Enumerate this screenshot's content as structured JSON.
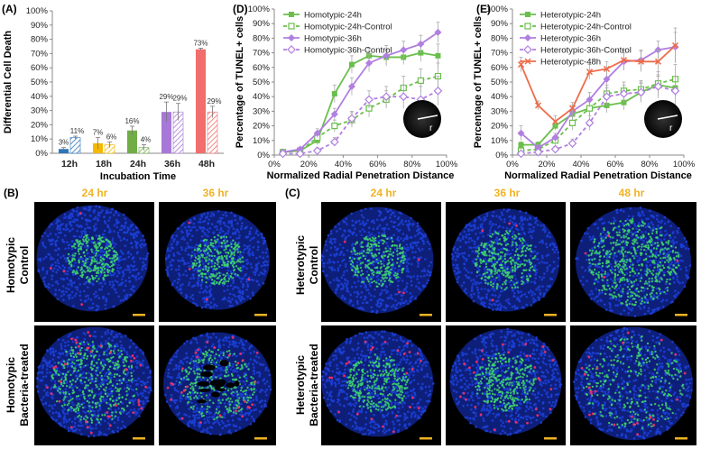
{
  "chart_data": [
    {
      "panel": "(A)",
      "type": "bar",
      "ylabel": "Differential Cell Death",
      "xlabel": "Incubation Time",
      "ylim": [
        0,
        100
      ],
      "yticks": [
        "0%",
        "10%",
        "20%",
        "30%",
        "40%",
        "50%",
        "60%",
        "70%",
        "80%",
        "90%",
        "100%"
      ],
      "categories": [
        "12h",
        "18h",
        "24h",
        "36h",
        "48h"
      ],
      "series": [
        {
          "values": [
            3,
            7,
            16,
            29,
            73
          ],
          "labels": [
            "3%",
            "7%",
            "16%",
            "29%",
            "73%"
          ]
        },
        {
          "values": [
            11,
            6,
            4,
            29,
            29
          ],
          "labels": [
            "11%",
            "6%",
            "4%",
            "29%",
            "29%"
          ]
        }
      ],
      "colors": [
        "#2e75b6",
        "#f5b800",
        "#70ad47",
        "#a678d8",
        "#f26d6d"
      ]
    },
    {
      "panel": "(D)",
      "type": "line",
      "ylabel": "Percentage of TUNEL+ cells",
      "xlabel": "Normalized Radial Penetration Distance",
      "xlim": [
        0,
        100
      ],
      "ylim": [
        0,
        100
      ],
      "xticks": [
        "0%",
        "20%",
        "40%",
        "60%",
        "80%",
        "100%"
      ],
      "yticks": [
        "0%",
        "10%",
        "20%",
        "30%",
        "40%",
        "50%",
        "60%",
        "70%",
        "80%",
        "90%",
        "100%"
      ],
      "x": [
        5,
        15,
        25,
        35,
        45,
        55,
        65,
        75,
        85,
        95
      ],
      "series": [
        {
          "name": "Homotypic-24h",
          "color": "#6abf4b",
          "marker": "square",
          "dashed": false,
          "values": [
            2,
            3,
            10,
            42,
            62,
            68,
            67,
            67,
            70,
            68
          ]
        },
        {
          "name": "Homotypic-24h-Control",
          "color": "#6abf4b",
          "marker": "square-open",
          "dashed": true,
          "values": [
            2,
            3,
            12,
            20,
            24,
            32,
            38,
            46,
            51,
            54
          ]
        },
        {
          "name": "Homotypic-36h",
          "color": "#b07fe0",
          "marker": "diamond",
          "dashed": false,
          "values": [
            2,
            4,
            15,
            28,
            47,
            63,
            68,
            72,
            76,
            84
          ]
        },
        {
          "name": "Homotypic-36h-Control",
          "color": "#b07fe0",
          "marker": "diamond-open",
          "dashed": true,
          "values": [
            1,
            1,
            3,
            9,
            25,
            38,
            40,
            40,
            38,
            44
          ]
        }
      ]
    },
    {
      "panel": "(E)",
      "type": "line",
      "ylabel": "Percentage of TUNEL+ cells",
      "xlabel": "Normalized Radial Penetration Distance",
      "xlim": [
        0,
        100
      ],
      "ylim": [
        0,
        100
      ],
      "xticks": [
        "0%",
        "20%",
        "40%",
        "60%",
        "80%",
        "100%"
      ],
      "yticks": [
        "0%",
        "10%",
        "20%",
        "30%",
        "40%",
        "50%",
        "60%",
        "70%",
        "80%",
        "90%",
        "100%"
      ],
      "x": [
        5,
        15,
        25,
        35,
        45,
        55,
        65,
        75,
        85,
        95
      ],
      "series": [
        {
          "name": "Heterotypic-24h",
          "color": "#6abf4b",
          "marker": "square",
          "dashed": false,
          "values": [
            7,
            7,
            20,
            28,
            32,
            34,
            36,
            43,
            48,
            46
          ]
        },
        {
          "name": "Heterotypic-24h-Control",
          "color": "#6abf4b",
          "marker": "square-open",
          "dashed": true,
          "values": [
            3,
            4,
            10,
            22,
            32,
            42,
            44,
            45,
            49,
            52
          ]
        },
        {
          "name": "Heterotypic-36h",
          "color": "#b07fe0",
          "marker": "diamond",
          "dashed": false,
          "values": [
            15,
            5,
            12,
            30,
            38,
            52,
            64,
            65,
            72,
            74
          ]
        },
        {
          "name": "Heterotypic-36h-Control",
          "color": "#b07fe0",
          "marker": "diamond-open",
          "dashed": true,
          "values": [
            1,
            2,
            4,
            8,
            22,
            40,
            42,
            43,
            47,
            44
          ]
        },
        {
          "name": "Heterotypic-48h",
          "color": "#ef6b4a",
          "marker": "x",
          "dashed": false,
          "values": [
            62,
            34,
            23,
            32,
            57,
            59,
            65,
            64,
            64,
            75
          ]
        }
      ]
    }
  ],
  "micrographs": {
    "panel_B": {
      "label": "(B)",
      "columns": [
        "24 hr",
        "36 hr"
      ],
      "rows": [
        [
          "Homotypic",
          "Control"
        ],
        [
          "Homotypic",
          "Bacteria-treated"
        ]
      ]
    },
    "panel_C": {
      "label": "(C)",
      "columns": [
        "24 hr",
        "36 hr",
        "48 hr"
      ],
      "rows": [
        [
          "Heterotypic",
          "Control"
        ],
        [
          "Heterotypic",
          "Bacteria-treated"
        ]
      ]
    },
    "inset_label": "r",
    "stain_colors": {
      "nuclei": "#1c3fd6",
      "live": "#3fd66b",
      "dead": "#ff2f63",
      "scale_bar": "#f0b323"
    }
  }
}
